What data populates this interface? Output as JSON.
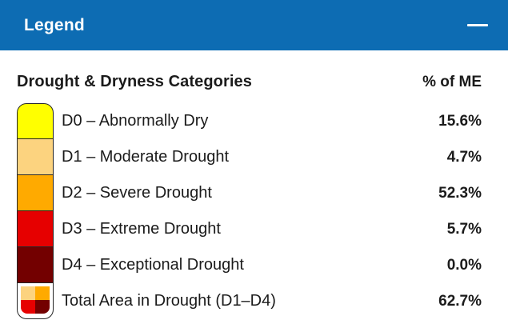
{
  "header": {
    "title": "Legend",
    "bg_color": "#0d6cb3"
  },
  "table": {
    "heading": "Drought & Dryness Categories",
    "value_column_header": "% of ME",
    "rows": [
      {
        "code": "D0",
        "label": "D0 – Abnormally Dry",
        "value": "15.6%",
        "color": "#FFFF00"
      },
      {
        "code": "D1",
        "label": "D1 – Moderate Drought",
        "value": "4.7%",
        "color": "#FCD37F"
      },
      {
        "code": "D2",
        "label": "D2 – Severe Drought",
        "value": "52.3%",
        "color": "#FFAA00"
      },
      {
        "code": "D3",
        "label": "D3 – Extreme Drought",
        "value": "5.7%",
        "color": "#E60000"
      },
      {
        "code": "D4",
        "label": "D4 – Exceptional Drought",
        "value": "0.0%",
        "color": "#730000"
      },
      {
        "code": "TOTAL",
        "label": "Total Area in Drought (D1–D4)",
        "value": "62.7%",
        "colors": [
          "#FCD37F",
          "#FFAA00",
          "#E60000",
          "#730000"
        ]
      }
    ]
  },
  "colors": {
    "ink": "#1b1b1b",
    "swatch_border": "#262626"
  }
}
